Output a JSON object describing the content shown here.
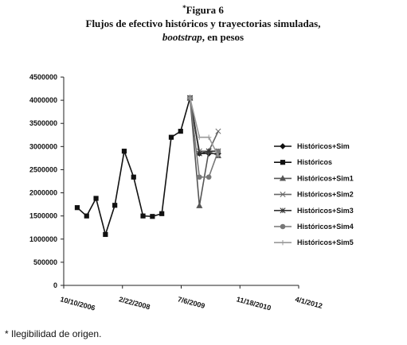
{
  "figure_mark": "*",
  "figure_label": "Figura 6",
  "subtitle": "Flujos de efectivo históricos y trayectorias simuladas,",
  "subtitle_italic": "bootstrap",
  "subtitle_rest": ", en pesos",
  "footnote": "* Ilegibilidad de origen.",
  "chart_data": {
    "type": "line",
    "x": [
      "2/2/2007",
      "4/23/2007",
      "7/12/2007",
      "9/30/2007",
      "12/19/2007",
      "3/8/2008",
      "5/27/2008",
      "8/15/2008",
      "11/3/2008",
      "1/22/2009",
      "4/12/2009",
      "7/1/2009",
      "9/19/2009",
      "12/8/2009",
      "2/26/2010",
      "5/17/2010"
    ],
    "xlim": [
      "10/10/2006",
      "4/1/2012"
    ],
    "xticks": [
      "10/10/2006",
      "2/22/2008",
      "7/6/2009",
      "11/18/2010",
      "4/1/2012"
    ],
    "ylim": [
      0,
      4500000
    ],
    "yticks": [
      0,
      500000,
      1000000,
      1500000,
      2000000,
      2500000,
      3000000,
      3500000,
      4000000,
      4500000
    ],
    "legend": "right",
    "series": [
      {
        "name": "Históricos+Sim",
        "color": "#111111",
        "marker": "diamond",
        "values": [
          null,
          null,
          null,
          null,
          null,
          null,
          null,
          null,
          null,
          null,
          null,
          null,
          4050000,
          2850000,
          2850000,
          2850000
        ]
      },
      {
        "name": "Históricos",
        "color": "#111111",
        "marker": "square",
        "values": [
          1680000,
          1500000,
          1880000,
          1100000,
          1730000,
          2900000,
          2340000,
          1500000,
          1490000,
          1550000,
          3200000,
          3330000,
          4050000,
          null,
          null,
          null
        ]
      },
      {
        "name": "Históricos+Sim1",
        "color": "#555555",
        "marker": "triangle",
        "values": [
          null,
          null,
          null,
          null,
          null,
          null,
          null,
          null,
          null,
          null,
          null,
          null,
          4050000,
          1720000,
          2900000,
          2800000
        ]
      },
      {
        "name": "Históricos+Sim2",
        "color": "#666666",
        "marker": "cross",
        "values": [
          null,
          null,
          null,
          null,
          null,
          null,
          null,
          null,
          null,
          null,
          null,
          null,
          4050000,
          2900000,
          2900000,
          3330000
        ]
      },
      {
        "name": "Históricos+Sim3",
        "color": "#333333",
        "marker": "star",
        "values": [
          null,
          null,
          null,
          null,
          null,
          null,
          null,
          null,
          null,
          null,
          null,
          null,
          4050000,
          2850000,
          2900000,
          2900000
        ]
      },
      {
        "name": "Históricos+Sim4",
        "color": "#777777",
        "marker": "circle",
        "values": [
          null,
          null,
          null,
          null,
          null,
          null,
          null,
          null,
          null,
          null,
          null,
          null,
          4050000,
          2340000,
          2340000,
          2900000
        ]
      },
      {
        "name": "Históricos+Sim5",
        "color": "#999999",
        "marker": "plus",
        "values": [
          null,
          null,
          null,
          null,
          null,
          null,
          null,
          null,
          null,
          null,
          null,
          null,
          4050000,
          3200000,
          3200000,
          2800000
        ]
      }
    ]
  }
}
